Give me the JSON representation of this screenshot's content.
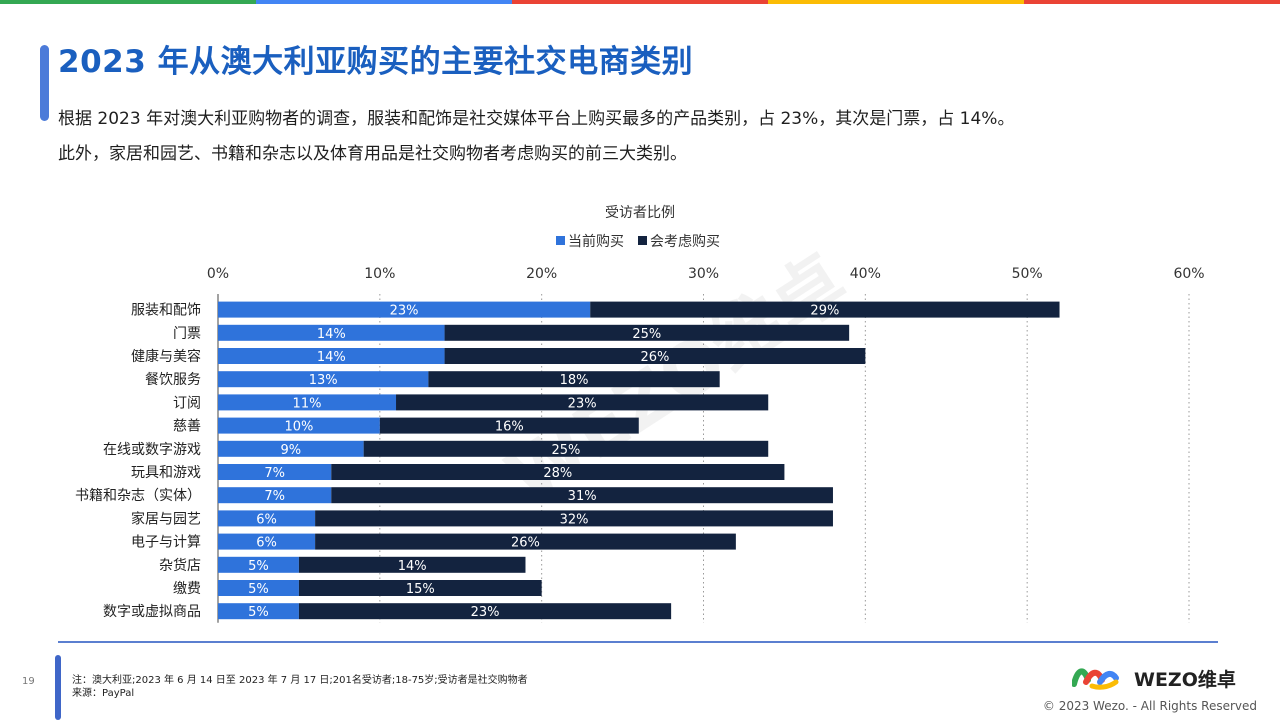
{
  "header": {
    "title": "2023 年从澳大利亚购买的主要社交电商类别",
    "desc_line1": "根据 2023 年对澳大利亚购物者的调查，服装和配饰是社交媒体平台上购买最多的产品类别，占 23%，其次是门票，占 14%。",
    "desc_line2": "此外，家居和园艺、书籍和杂志以及体育用品是社交购物者考虑购买的前三大类别。"
  },
  "colors": {
    "strip": [
      "#34a853",
      "#4285f4",
      "#ea4335",
      "#fbbc04",
      "#ea4335"
    ],
    "current": "#2f73db",
    "consider": "#13233f",
    "title": "#1a5fbf"
  },
  "chart_data": {
    "type": "bar",
    "orientation": "horizontal",
    "stacked": true,
    "title": "受访者比例",
    "categories": [
      "服装和配饰",
      "门票",
      "健康与美容",
      "餐饮服务",
      "订阅",
      "慈善",
      "在线或数字游戏",
      "玩具和游戏",
      "书籍和杂志（实体）",
      "家居与园艺",
      "电子与计算",
      "杂货店",
      "缴费",
      "数字或虚拟商品"
    ],
    "series": [
      {
        "name": "当前购买",
        "values": [
          23,
          14,
          14,
          13,
          11,
          10,
          9,
          7,
          7,
          6,
          6,
          5,
          5,
          5
        ]
      },
      {
        "name": "会考虑购买",
        "values": [
          29,
          25,
          26,
          18,
          23,
          16,
          25,
          28,
          31,
          32,
          26,
          14,
          15,
          23
        ]
      }
    ],
    "value_suffix": "%",
    "xlim": [
      0,
      60
    ],
    "xticks": [
      "0%",
      "10%",
      "20%",
      "30%",
      "40%",
      "50%",
      "60%"
    ],
    "grid": true,
    "legend": "top",
    "watermark": "WEZO维卓"
  },
  "footer": {
    "page_number": "19",
    "note": "注：澳大利亚;2023 年 6 月 14 日至 2023 年 7 月 17 日;201名受访者;18-75岁;受访者是社交购物者",
    "source": "来源：PayPal",
    "logo_text": "WEZO维卓",
    "copyright": "© 2023 Wezo. - All Rights Reserved"
  }
}
